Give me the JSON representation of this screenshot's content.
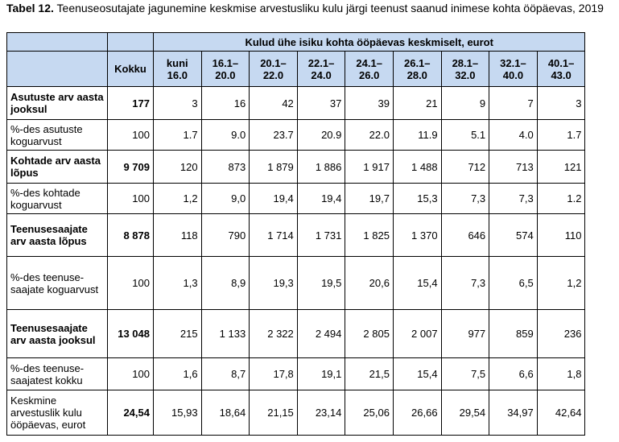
{
  "header": {
    "label": "Tabel 12.",
    "title": "Teenuseosutajate jagunemine keskmise arvestusliku kulu järgi teenust saanud inimese kohta ööpäevas, 2019"
  },
  "table": {
    "group_header": "Kulud ühe isiku kohta ööpäevas keskmiselt, eurot",
    "columns": [
      "Kokku",
      "kuni 16.0",
      "16.1–20.0",
      "20.1–22.0",
      "22.1–24.0",
      "24.1–26.0",
      "26.1–28.0",
      "28.1–32.0",
      "32.1–40.0",
      "40.1–43.0"
    ],
    "rows": [
      {
        "label": "Asutuste arv aasta jooksul",
        "values": [
          "177",
          "3",
          "16",
          "42",
          "37",
          "39",
          "21",
          "9",
          "7",
          "3"
        ]
      },
      {
        "label": "%-des asutuste koguarvust",
        "values": [
          "100",
          "1.7",
          "9.0",
          "23.7",
          "20.9",
          "22.0",
          "11.9",
          "5.1",
          "4.0",
          "1.7"
        ]
      },
      {
        "label": "Kohtade arv aasta lõpus",
        "values": [
          "9 709",
          "120",
          "873",
          "1 879",
          "1 886",
          "1 917",
          "1 488",
          "712",
          "713",
          "121"
        ]
      },
      {
        "label": "%-des kohtade koguarvust",
        "values": [
          "100",
          "1,2",
          "9,0",
          "19,4",
          "19,4",
          "19,7",
          "15,3",
          "7,3",
          "7,3",
          "1.2"
        ]
      },
      {
        "label": "Teenusesaajate arv aasta lõpus",
        "values": [
          "8 878",
          "118",
          "790",
          "1 714",
          "1 731",
          "1 825",
          "1 370",
          "646",
          "574",
          "110"
        ]
      },
      {
        "label": "%-des teenuse-saajate koguarvust",
        "values": [
          "100",
          "1,3",
          "8,9",
          "19,3",
          "19,5",
          "20,6",
          "15,4",
          "7,3",
          "6,5",
          "1,2"
        ]
      },
      {
        "label": "Teenusesaajate arv aasta jooksul",
        "values": [
          "13 048",
          "215",
          "1 133",
          "2 322",
          "2 494",
          "2 805",
          "2 007",
          "977",
          "859",
          "236"
        ]
      },
      {
        "label": "%-des teenuse-saajatest kokku",
        "values": [
          "100",
          "1,6",
          "8,7",
          "17,8",
          "19,1",
          "21,5",
          "15,4",
          "7,5",
          "6,6",
          "1,8"
        ]
      },
      {
        "label": "Keskmine arvestuslik kulu ööpäevas, eurot",
        "values": [
          "24,54",
          "15,93",
          "18,64",
          "21,15",
          "23,14",
          "25,06",
          "26,66",
          "29,54",
          "34,97",
          "42,64"
        ]
      }
    ]
  }
}
